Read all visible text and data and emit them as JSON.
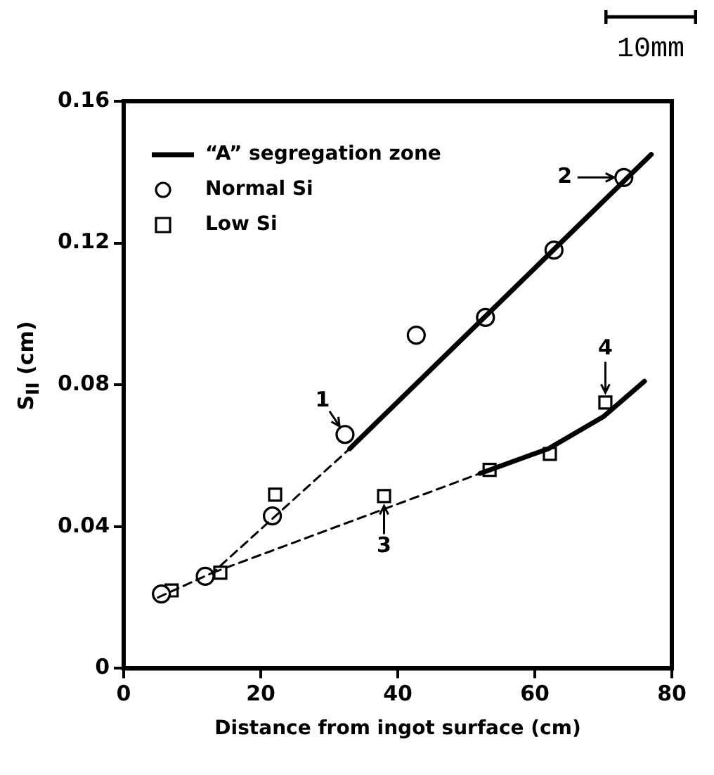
{
  "chart_data": {
    "type": "scatter",
    "xlabel": "Distance from ingot surface (cm)",
    "ylabel": "S$_{II}$ (cm)",
    "xlim": [
      0,
      80
    ],
    "xticks": [
      0,
      20,
      40,
      60,
      80
    ],
    "ylim": [
      0,
      0.16
    ],
    "yticks": [
      0,
      0.04,
      0.08,
      0.12,
      0.16
    ],
    "grid": false,
    "legend": "top left",
    "series": [
      {
        "name": "“A” segregation zone",
        "type": "line",
        "color": "#000000",
        "line_style": "solid",
        "marker": "none",
        "x": [
          33,
          77,
          null,
          52,
          62,
          70,
          76
        ],
        "values": [
          0.062,
          0.145,
          null,
          0.055,
          0.062,
          0.071,
          0.081
        ]
      },
      {
        "type": "line",
        "color": "#000000",
        "line_style": "dashed",
        "marker": "none",
        "x": [
          5,
          13,
          33
        ],
        "values": [
          0.02,
          0.027,
          0.062
        ]
      },
      {
        "type": "line",
        "color": "#000000",
        "line_style": "dashed",
        "marker": "none",
        "x": [
          13,
          52
        ],
        "values": [
          0.027,
          0.055
        ]
      },
      {
        "name": "Normal Si",
        "color": "#000000",
        "marker": "circle",
        "x": [
          5.5,
          11.9,
          21.7,
          32.3,
          42.7,
          52.8,
          62.8,
          73
        ],
        "values": [
          0.021,
          0.026,
          0.043,
          0.066,
          0.094,
          0.099,
          0.118,
          0.1385
        ]
      },
      {
        "name": "Low Si",
        "color": "#000000",
        "marker": "square",
        "x": [
          7,
          14.1,
          22.1,
          38,
          53.4,
          62.2,
          70.3
        ],
        "values": [
          0.022,
          0.027,
          0.049,
          0.0486,
          0.056,
          0.0605,
          0.075
        ]
      }
    ],
    "annotations": [
      {
        "text": "1",
        "x": 32.3,
        "y": 0.066
      },
      {
        "text": "2",
        "x": 73,
        "y": 0.1385
      },
      {
        "text": "3",
        "x": 38,
        "y": 0.0486
      },
      {
        "text": "4",
        "x": 70.3,
        "y": 0.075
      },
      "10mm"
    ]
  }
}
